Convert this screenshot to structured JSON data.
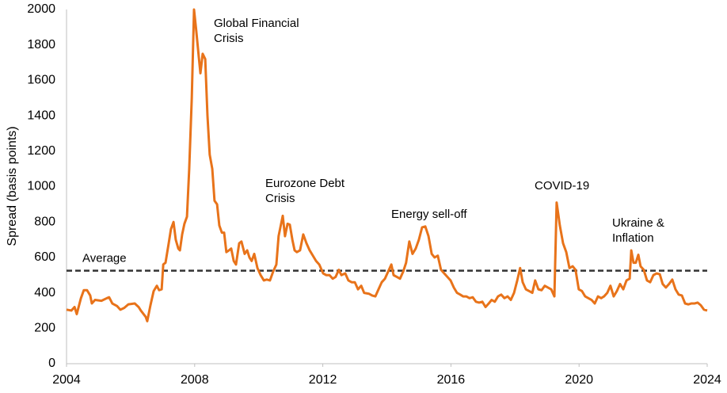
{
  "chart_data": {
    "type": "line",
    "y_label": "Spread (basis points)",
    "xlim": [
      2004,
      2024
    ],
    "xticks": [
      2004,
      2008,
      2012,
      2016,
      2020,
      2024
    ],
    "ylim": [
      0,
      2000
    ],
    "yticks": [
      0,
      200,
      400,
      600,
      800,
      1000,
      1200,
      1400,
      1600,
      1800,
      2000
    ],
    "grid": false,
    "x": [
      2004.0,
      2004.15,
      2004.25,
      2004.32,
      2004.45,
      2004.54,
      2004.64,
      2004.74,
      2004.79,
      2004.89,
      2005.09,
      2005.26,
      2005.33,
      2005.43,
      2005.58,
      2005.68,
      2005.8,
      2005.93,
      2006.13,
      2006.25,
      2006.32,
      2006.47,
      2006.52,
      2006.62,
      2006.72,
      2006.82,
      2006.89,
      2006.97,
      2007.02,
      2007.09,
      2007.19,
      2007.26,
      2007.34,
      2007.41,
      2007.49,
      2007.54,
      2007.61,
      2007.68,
      2007.76,
      2007.83,
      2007.91,
      2007.98,
      2008.05,
      2008.13,
      2008.18,
      2008.25,
      2008.33,
      2008.4,
      2008.47,
      2008.55,
      2008.62,
      2008.7,
      2008.77,
      2008.85,
      2008.92,
      2008.99,
      2009.07,
      2009.14,
      2009.22,
      2009.29,
      2009.39,
      2009.46,
      2009.56,
      2009.64,
      2009.71,
      2009.78,
      2009.86,
      2009.96,
      2010.06,
      2010.16,
      2010.25,
      2010.35,
      2010.45,
      2010.55,
      2010.62,
      2010.75,
      2010.82,
      2010.9,
      2010.97,
      2011.05,
      2011.12,
      2011.19,
      2011.29,
      2011.39,
      2011.49,
      2011.59,
      2011.69,
      2011.79,
      2011.89,
      2012.01,
      2012.11,
      2012.21,
      2012.31,
      2012.4,
      2012.5,
      2012.58,
      2012.7,
      2012.8,
      2012.9,
      2013.0,
      2013.1,
      2013.2,
      2013.29,
      2013.44,
      2013.54,
      2013.64,
      2013.74,
      2013.84,
      2013.94,
      2014.04,
      2014.14,
      2014.21,
      2014.31,
      2014.41,
      2014.51,
      2014.6,
      2014.7,
      2014.8,
      2014.9,
      2015.0,
      2015.1,
      2015.2,
      2015.3,
      2015.4,
      2015.49,
      2015.59,
      2015.69,
      2015.79,
      2015.89,
      2015.99,
      2016.09,
      2016.19,
      2016.29,
      2016.38,
      2016.48,
      2016.58,
      2016.68,
      2016.78,
      2016.88,
      2016.98,
      2017.08,
      2017.18,
      2017.27,
      2017.37,
      2017.47,
      2017.57,
      2017.67,
      2017.77,
      2017.87,
      2017.97,
      2018.07,
      2018.16,
      2018.24,
      2018.34,
      2018.44,
      2018.54,
      2018.63,
      2018.73,
      2018.83,
      2018.93,
      2019.03,
      2019.13,
      2019.23,
      2019.3,
      2019.4,
      2019.5,
      2019.6,
      2019.7,
      2019.8,
      2019.89,
      2019.99,
      2020.09,
      2020.19,
      2020.29,
      2020.39,
      2020.49,
      2020.59,
      2020.69,
      2020.78,
      2020.88,
      2020.98,
      2021.08,
      2021.18,
      2021.28,
      2021.38,
      2021.48,
      2021.58,
      2021.63,
      2021.7,
      2021.77,
      2021.85,
      2021.92,
      2022.02,
      2022.12,
      2022.22,
      2022.32,
      2022.42,
      2022.52,
      2022.61,
      2022.71,
      2022.81,
      2022.91,
      2023.01,
      2023.11,
      2023.21,
      2023.31,
      2023.41,
      2023.5,
      2023.6,
      2023.7,
      2023.8,
      2023.9,
      2024.0
    ],
    "series": [
      {
        "color": "#e8731a",
        "values": [
          305,
          300,
          320,
          280,
          370,
          415,
          415,
          385,
          340,
          360,
          355,
          370,
          375,
          340,
          325,
          305,
          315,
          335,
          340,
          320,
          300,
          265,
          240,
          330,
          410,
          440,
          415,
          420,
          560,
          570,
          680,
          760,
          800,
          700,
          650,
          640,
          730,
          790,
          830,
          1100,
          1500,
          2000,
          1880,
          1730,
          1640,
          1750,
          1720,
          1400,
          1180,
          1100,
          920,
          900,
          780,
          740,
          740,
          630,
          640,
          650,
          580,
          560,
          680,
          690,
          620,
          640,
          600,
          580,
          620,
          540,
          500,
          470,
          475,
          470,
          520,
          560,
          720,
          835,
          720,
          790,
          785,
          700,
          640,
          630,
          640,
          730,
          680,
          640,
          610,
          580,
          560,
          510,
          500,
          500,
          480,
          490,
          530,
          500,
          510,
          470,
          460,
          460,
          420,
          440,
          400,
          395,
          385,
          380,
          420,
          460,
          480,
          520,
          560,
          500,
          490,
          480,
          520,
          570,
          690,
          620,
          650,
          700,
          770,
          775,
          720,
          620,
          600,
          610,
          530,
          510,
          490,
          470,
          430,
          400,
          390,
          380,
          380,
          370,
          375,
          350,
          345,
          350,
          320,
          340,
          360,
          350,
          380,
          390,
          370,
          380,
          360,
          400,
          470,
          540,
          460,
          420,
          410,
          400,
          470,
          420,
          415,
          440,
          430,
          420,
          380,
          910,
          780,
          680,
          630,
          540,
          550,
          530,
          420,
          410,
          380,
          370,
          360,
          340,
          380,
          370,
          380,
          400,
          440,
          380,
          410,
          450,
          420,
          470,
          480,
          640,
          570,
          570,
          615,
          550,
          530,
          470,
          460,
          500,
          510,
          505,
          450,
          430,
          450,
          475,
          420,
          390,
          385,
          340,
          335,
          340,
          340,
          345,
          330,
          305,
          300
        ]
      }
    ],
    "reference_line": {
      "label": "Average",
      "value": 525,
      "color": "#333333",
      "style": "dashed"
    },
    "annotations": [
      {
        "lines": [
          "Global Financial",
          "Crisis"
        ]
      },
      {
        "lines": [
          "Eurozone Debt",
          "Crisis"
        ]
      },
      {
        "lines": [
          "Energy sell-off"
        ]
      },
      {
        "lines": [
          "COVID-19"
        ]
      },
      {
        "lines": [
          "Ukraine &",
          "Inflation"
        ]
      }
    ]
  }
}
